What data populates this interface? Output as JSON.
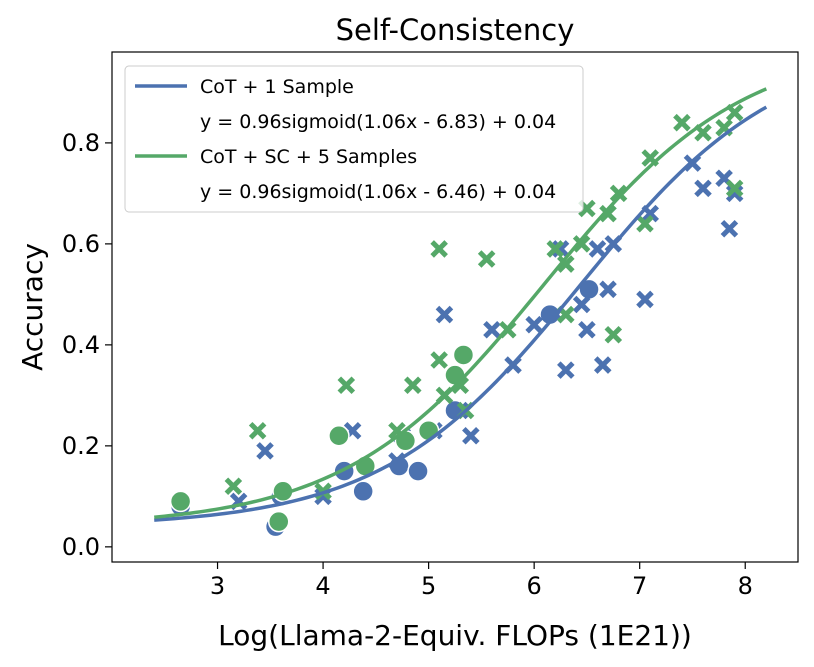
{
  "chart_data": {
    "type": "scatter",
    "title": "Self-Consistency",
    "xlabel": "Log(Llama-2-Equiv. FLOPs (1E21))",
    "ylabel": "Accuracy",
    "xlim": [
      2.0,
      8.5
    ],
    "ylim": [
      -0.03,
      0.98
    ],
    "xticks": [
      3,
      4,
      5,
      6,
      7,
      8
    ],
    "xtick_labels": [
      "3",
      "4",
      "5",
      "6",
      "7",
      "8"
    ],
    "yticks": [
      0.0,
      0.2,
      0.4,
      0.6,
      0.8
    ],
    "ytick_labels": [
      "0.0",
      "0.2",
      "0.4",
      "0.6",
      "0.8"
    ],
    "legend_position": "top-left",
    "colors": {
      "blue": "#4c72b0",
      "green": "#55a868"
    },
    "series": [
      {
        "name": "CoT + 1 Sample",
        "equation": "y = 0.96sigmoid(1.06x - 6.83) + 0.04",
        "color": "#4c72b0",
        "fit": {
          "a": 0.96,
          "b": 1.06,
          "c": -6.83,
          "d": 0.04,
          "x_range": [
            2.4,
            8.2
          ]
        },
        "x_markers": [
          [
            3.2,
            0.09
          ],
          [
            3.45,
            0.19
          ],
          [
            4.0,
            0.1
          ],
          [
            4.28,
            0.23
          ],
          [
            4.7,
            0.17
          ],
          [
            4.75,
            0.22
          ],
          [
            5.05,
            0.23
          ],
          [
            5.15,
            0.46
          ],
          [
            5.3,
            0.27
          ],
          [
            5.4,
            0.22
          ],
          [
            5.6,
            0.43
          ],
          [
            5.8,
            0.36
          ],
          [
            6.0,
            0.44
          ],
          [
            6.2,
            0.46
          ],
          [
            6.25,
            0.59
          ],
          [
            6.3,
            0.35
          ],
          [
            6.45,
            0.48
          ],
          [
            6.5,
            0.43
          ],
          [
            6.6,
            0.59
          ],
          [
            6.65,
            0.36
          ],
          [
            6.7,
            0.51
          ],
          [
            6.75,
            0.6
          ],
          [
            7.05,
            0.49
          ],
          [
            7.1,
            0.66
          ],
          [
            7.5,
            0.76
          ],
          [
            7.6,
            0.71
          ],
          [
            7.8,
            0.73
          ],
          [
            7.85,
            0.63
          ],
          [
            7.9,
            0.7
          ]
        ],
        "circle_markers": [
          [
            2.65,
            0.08
          ],
          [
            3.55,
            0.04
          ],
          [
            3.6,
            0.1
          ],
          [
            4.2,
            0.15
          ],
          [
            4.38,
            0.11
          ],
          [
            4.72,
            0.16
          ],
          [
            4.9,
            0.15
          ],
          [
            5.25,
            0.27
          ],
          [
            6.15,
            0.46
          ],
          [
            6.52,
            0.51
          ]
        ]
      },
      {
        "name": "CoT + SC + 5 Samples",
        "equation": "y = 0.96sigmoid(1.06x - 6.46) + 0.04",
        "color": "#55a868",
        "fit": {
          "a": 0.96,
          "b": 1.06,
          "c": -6.46,
          "d": 0.04,
          "x_range": [
            2.4,
            8.2
          ]
        },
        "x_markers": [
          [
            3.15,
            0.12
          ],
          [
            3.38,
            0.23
          ],
          [
            4.0,
            0.11
          ],
          [
            4.22,
            0.32
          ],
          [
            4.7,
            0.23
          ],
          [
            4.85,
            0.32
          ],
          [
            5.1,
            0.37
          ],
          [
            5.1,
            0.59
          ],
          [
            5.15,
            0.3
          ],
          [
            5.3,
            0.32
          ],
          [
            5.35,
            0.27
          ],
          [
            5.55,
            0.57
          ],
          [
            5.75,
            0.43
          ],
          [
            6.2,
            0.59
          ],
          [
            6.3,
            0.56
          ],
          [
            6.3,
            0.46
          ],
          [
            6.45,
            0.6
          ],
          [
            6.5,
            0.67
          ],
          [
            6.7,
            0.66
          ],
          [
            6.75,
            0.42
          ],
          [
            6.8,
            0.7
          ],
          [
            7.05,
            0.64
          ],
          [
            7.1,
            0.77
          ],
          [
            7.4,
            0.84
          ],
          [
            7.6,
            0.82
          ],
          [
            7.8,
            0.83
          ],
          [
            7.9,
            0.86
          ],
          [
            7.9,
            0.71
          ]
        ],
        "circle_markers": [
          [
            2.65,
            0.09
          ],
          [
            3.58,
            0.05
          ],
          [
            3.62,
            0.11
          ],
          [
            4.15,
            0.22
          ],
          [
            4.4,
            0.16
          ],
          [
            4.78,
            0.21
          ],
          [
            5.0,
            0.23
          ],
          [
            5.25,
            0.34
          ],
          [
            5.33,
            0.38
          ]
        ]
      }
    ]
  }
}
